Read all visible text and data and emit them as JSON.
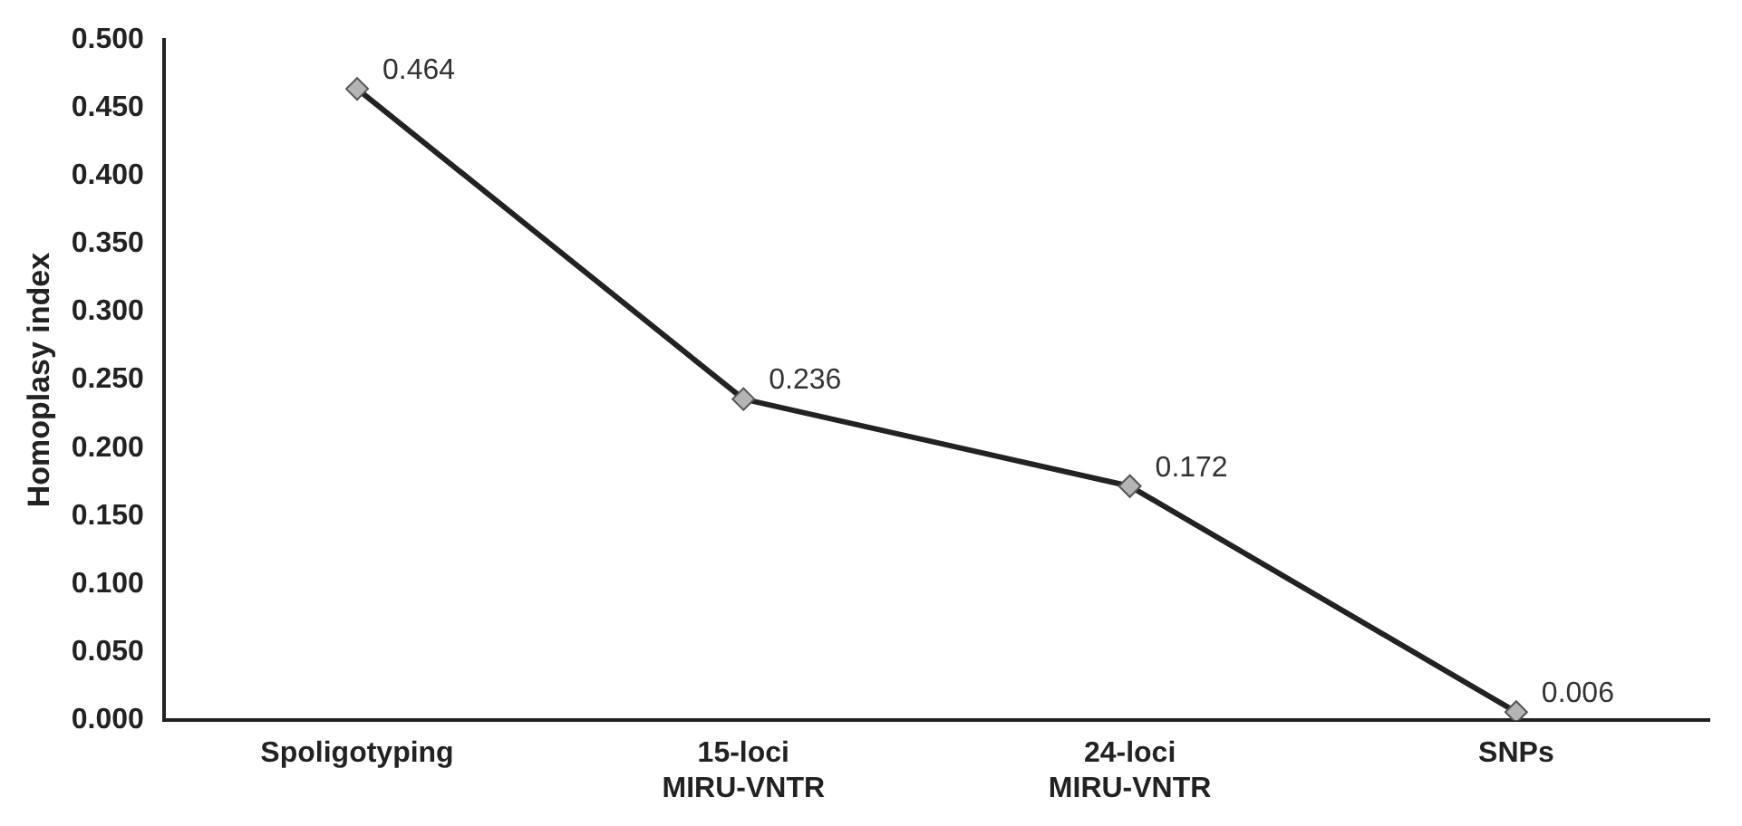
{
  "chart_data": {
    "type": "line",
    "ylabel": "Homoplasy index",
    "categories": [
      "Spoligotyping",
      "15-loci\nMIRU-VNTR",
      "24-loci\nMIRU-VNTR",
      "SNPs"
    ],
    "series": [
      {
        "color": "#222222",
        "values": [
          0.464,
          0.236,
          0.172,
          0.006
        ]
      }
    ],
    "ylim": [
      0,
      0.5
    ],
    "yticks": [
      {
        "value": 0,
        "label": "0.000"
      },
      {
        "value": 0.05,
        "label": "0.050"
      },
      {
        "value": 0.1,
        "label": "0.100"
      },
      {
        "value": 0.15,
        "label": "0.150"
      },
      {
        "value": 0.2,
        "label": "0.200"
      },
      {
        "value": 0.25,
        "label": "0.250"
      },
      {
        "value": 0.3,
        "label": "0.300"
      },
      {
        "value": 0.35,
        "label": "0.350"
      },
      {
        "value": 0.4,
        "label": "0.400"
      },
      {
        "value": 0.45,
        "label": "0.450"
      },
      {
        "value": 0.5,
        "label": "0.500"
      }
    ],
    "data_labels": true,
    "grid": false,
    "legend": false,
    "marker": "diamond",
    "line_style": "solid"
  }
}
